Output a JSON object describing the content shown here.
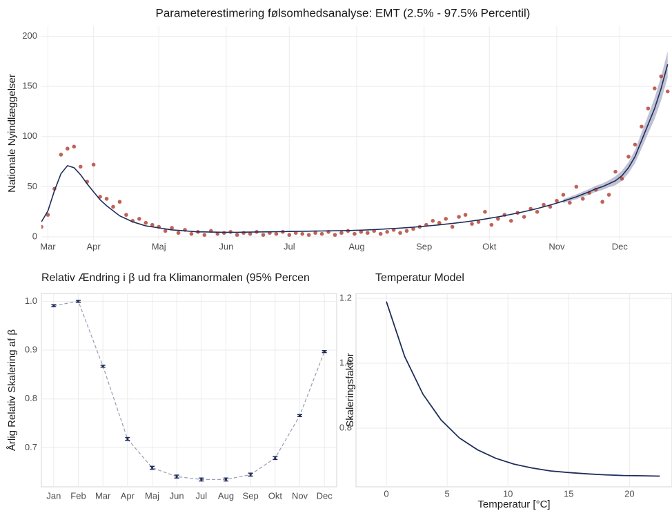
{
  "chart_data": [
    {
      "type": "scatter",
      "title": "Parameterestimering følsomhedsanalyse: EMT (2.5% - 97.5% Percentil)",
      "ylabel": "Nationale Nyindlæggelser",
      "xlim": [
        0,
        290
      ],
      "xticks": [
        {
          "value": 3,
          "label": "Mar"
        },
        {
          "value": 24,
          "label": "Apr"
        },
        {
          "value": 54,
          "label": "Maj"
        },
        {
          "value": 85,
          "label": "Jun"
        },
        {
          "value": 114,
          "label": "Jul"
        },
        {
          "value": 145,
          "label": "Aug"
        },
        {
          "value": 176,
          "label": "Sep"
        },
        {
          "value": 206,
          "label": "Okt"
        },
        {
          "value": 237,
          "label": "Nov"
        },
        {
          "value": 266,
          "label": "Dec"
        }
      ],
      "ylim": [
        -3.4,
        210
      ],
      "yticks": [
        0,
        50,
        100,
        150,
        200
      ],
      "grid": true,
      "x": [
        0,
        3,
        6,
        9,
        12,
        15,
        18,
        21,
        24,
        27,
        30,
        33,
        36,
        39,
        42,
        45,
        48,
        51,
        54,
        57,
        60,
        63,
        66,
        69,
        72,
        75,
        78,
        81,
        84,
        87,
        90,
        93,
        96,
        99,
        102,
        105,
        108,
        111,
        114,
        117,
        120,
        123,
        126,
        129,
        132,
        135,
        138,
        141,
        144,
        147,
        150,
        153,
        156,
        159,
        162,
        165,
        168,
        171,
        174,
        177,
        180,
        183,
        186,
        189,
        192,
        195,
        198,
        201,
        204,
        207,
        210,
        213,
        216,
        219,
        222,
        225,
        228,
        231,
        234,
        237,
        240,
        243,
        246,
        249,
        252,
        255,
        258,
        261,
        264,
        267,
        270,
        273,
        276,
        279,
        282,
        285,
        288
      ],
      "points": {
        "color": "#b5473a",
        "values": [
          10,
          22,
          48,
          82,
          88,
          90,
          70,
          55,
          72,
          40,
          38,
          30,
          35,
          22,
          16,
          18,
          14,
          12,
          10,
          6,
          9,
          4,
          7,
          3,
          5,
          2,
          6,
          3,
          4,
          5,
          2,
          4,
          3,
          5,
          2,
          4,
          3,
          5,
          2,
          4,
          3,
          2,
          4,
          3,
          5,
          2,
          4,
          6,
          3,
          5,
          4,
          6,
          3,
          5,
          7,
          4,
          6,
          8,
          10,
          12,
          16,
          14,
          18,
          10,
          20,
          22,
          13,
          15,
          25,
          12,
          18,
          22,
          16,
          24,
          20,
          28,
          25,
          32,
          30,
          36,
          42,
          34,
          50,
          38,
          44,
          47,
          35,
          42,
          65,
          58,
          80,
          92,
          110,
          128,
          148,
          160,
          145
        ]
      },
      "fit": {
        "color": "#1f2d5a",
        "values": [
          15,
          26,
          46,
          63,
          71,
          69,
          62,
          53,
          45,
          37,
          31,
          26,
          21,
          18,
          15,
          13,
          11,
          10,
          9,
          8,
          7,
          6.5,
          6,
          5.5,
          5,
          5,
          4.8,
          4.7,
          4.6,
          4.6,
          4.6,
          4.7,
          4.8,
          4.9,
          5,
          5.1,
          5.2,
          5.3,
          5.4,
          5.5,
          5.6,
          5.7,
          5.8,
          5.9,
          6,
          6.1,
          6.2,
          6.3,
          6.5,
          6.7,
          7,
          7.3,
          7.6,
          8,
          8.4,
          8.8,
          9.2,
          9.7,
          10.2,
          10.8,
          11.4,
          12,
          12.7,
          13.4,
          14.2,
          15,
          15.9,
          16.8,
          17.8,
          18.9,
          20,
          21.2,
          22.5,
          23.8,
          25.2,
          26.7,
          28.3,
          30,
          31.8,
          33.7,
          35.7,
          37.8,
          40,
          42.5,
          45,
          48,
          50,
          53,
          56,
          61,
          69,
          80,
          96,
          112,
          128,
          148,
          172
        ]
      },
      "band": {
        "color": "#8a8fb0",
        "x": [
          240,
          243,
          246,
          249,
          252,
          255,
          258,
          261,
          264,
          267,
          270,
          273,
          276,
          279,
          282,
          285,
          288
        ],
        "lower": [
          33.7,
          35.6,
          37.6,
          39.9,
          42.2,
          45,
          46.8,
          49.6,
          51.5,
          56,
          63.5,
          73.5,
          88,
          103,
          117.5,
          136,
          159
        ],
        "upper": [
          37.7,
          40,
          42.4,
          45.1,
          47.8,
          51,
          53.2,
          56.4,
          60.5,
          66,
          74.5,
          86.5,
          104,
          121,
          138.5,
          160,
          185
        ]
      }
    },
    {
      "type": "errorbar",
      "title": "Relativ Ændring i β ud fra Klimanormalen (95% Percen",
      "ylabel": "Årlig Relativ Skalering af β",
      "categories": [
        "Jan",
        "Feb",
        "Mar",
        "Apr",
        "Maj",
        "Jun",
        "Jul",
        "Aug",
        "Sep",
        "Okt",
        "Nov",
        "Dec"
      ],
      "values": [
        0.991,
        1.0,
        0.867,
        0.718,
        0.659,
        0.641,
        0.635,
        0.635,
        0.645,
        0.679,
        0.766,
        0.897
      ],
      "errors": [
        0.002,
        0.002,
        0.002,
        0.003,
        0.003,
        0.003,
        0.003,
        0.003,
        0.003,
        0.003,
        0.002,
        0.002
      ],
      "color": "#1f2d5a",
      "line_color": "#9a9ab8",
      "ylim": [
        0.62,
        1.016
      ],
      "yticks": [
        0.7,
        0.8,
        0.9,
        {
          "value": 1.0,
          "label": "1.0"
        }
      ],
      "grid": true
    },
    {
      "type": "line",
      "title": "Temperatur Model",
      "xlabel": "Temperatur [°C]",
      "ylabel": "Skaleringsfaktor",
      "x": [
        0,
        1.5,
        3,
        4.5,
        6,
        7.5,
        9,
        10.5,
        12,
        13.5,
        15,
        16.5,
        18,
        19.5,
        21,
        22.5
      ],
      "values": [
        1.19,
        1.021,
        0.905,
        0.825,
        0.77,
        0.733,
        0.707,
        0.689,
        0.677,
        0.668,
        0.663,
        0.659,
        0.656,
        0.654,
        0.653,
        0.652
      ],
      "color": "#1f2d5a",
      "xlim": [
        -2.5,
        23.5
      ],
      "xticks": [
        0,
        5,
        10,
        15,
        20
      ],
      "ylim": [
        0.619,
        1.215
      ],
      "yticks": [
        0.8,
        {
          "value": 1.0,
          "label": "1.0"
        },
        1.2
      ],
      "grid": true
    }
  ]
}
